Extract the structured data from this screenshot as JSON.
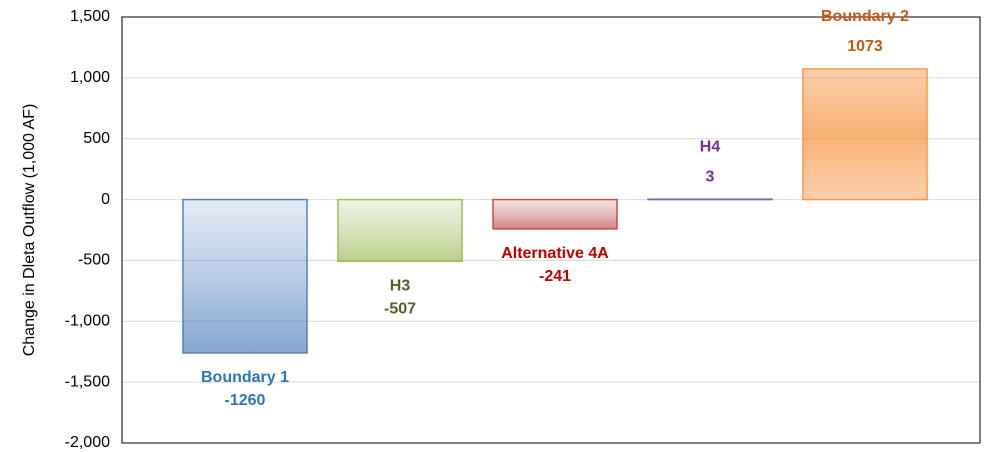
{
  "chart_data": {
    "type": "bar",
    "y_label": "Change in Dleta Outflow (1,000 AF)",
    "categories": [
      "Boundary 1",
      "H3",
      "Alternative 4A",
      "H4",
      "Boundary 2"
    ],
    "values": [
      -1260,
      -507,
      -241,
      3,
      1073
    ],
    "colors": [
      "#4f81bd",
      "#9bbb59",
      "#c0504d",
      "#8064a2",
      "#f79646"
    ],
    "label_colors": [
      "#2e75b6",
      "#4f6228",
      "#c00000",
      "#7030a0",
      "#c55a11"
    ],
    "ylim": [
      -2000,
      1500
    ],
    "yticks": [
      {
        "value": -2000,
        "label": "-2,000"
      },
      {
        "value": -1500,
        "label": "-1,500"
      },
      {
        "value": -1000,
        "label": "-1,000"
      },
      -500,
      0,
      500,
      {
        "value": 1000,
        "label": "1,000"
      },
      {
        "value": 1500,
        "label": "1,500"
      }
    ],
    "grid": true
  }
}
